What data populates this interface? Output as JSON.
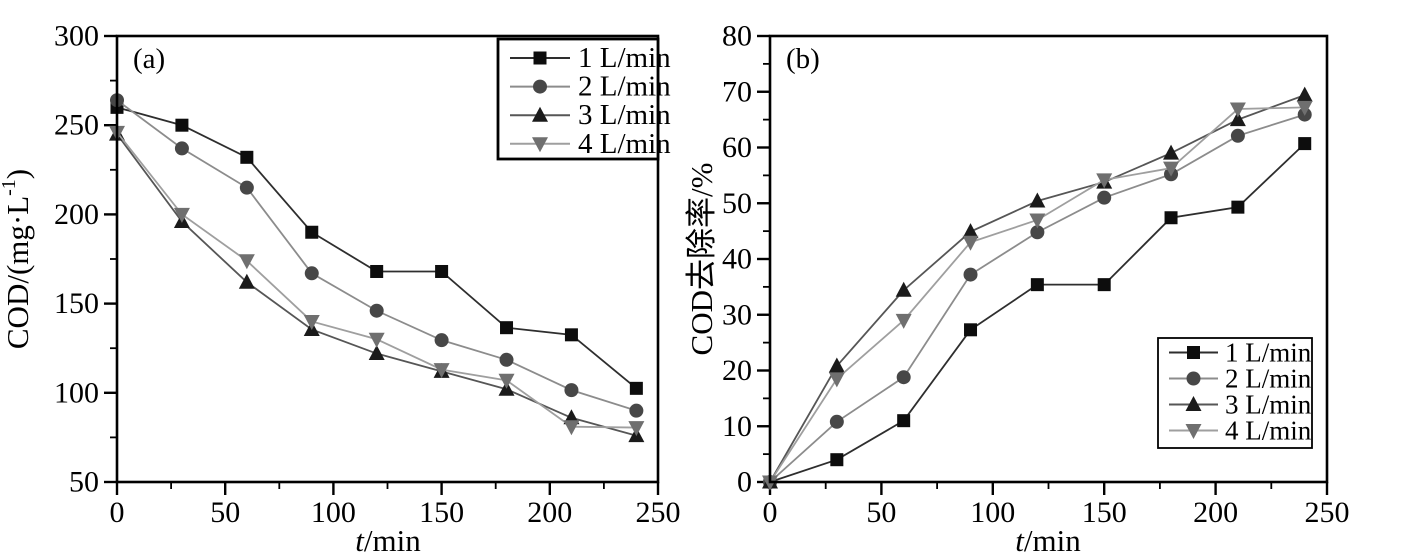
{
  "figure": {
    "background": "#ffffff",
    "axis_color": "#000000",
    "frame_stroke": 2.6
  },
  "chart_data": [
    {
      "type": "line",
      "panel_label": "(a)",
      "title": "",
      "xlabel": "t/min",
      "xlabel_italic_part": "t",
      "xlabel_regular_part": "/min",
      "ylabel": "COD/(mg·L⁻¹)",
      "ylabel_segments": [
        {
          "text": "COD/(mg·L",
          "sup": false
        },
        {
          "text": "-1",
          "sup": true
        },
        {
          "text": ")",
          "sup": false
        }
      ],
      "xlim": [
        0,
        250
      ],
      "ylim": [
        50,
        300
      ],
      "x_major_ticks": [
        0,
        50,
        100,
        150,
        200,
        250
      ],
      "y_major_ticks": [
        50,
        100,
        150,
        200,
        250,
        300
      ],
      "x_minor_step": 25,
      "y_minor_step": 25,
      "grid": false,
      "legend_position": "top-right-inside",
      "x": [
        0,
        30,
        60,
        90,
        120,
        150,
        180,
        210,
        240
      ],
      "series": [
        {
          "name": "1 L/min",
          "marker": "square",
          "marker_color": "#0d0d0d",
          "line_color": "#2e2e2e",
          "values": [
            260,
            250,
            232,
            190,
            168,
            168,
            136.5,
            132.5,
            102.5
          ]
        },
        {
          "name": "2 L/min",
          "marker": "circle",
          "marker_color": "#474747",
          "line_color": "#8c8c8c",
          "values": [
            264,
            237,
            215,
            167,
            146,
            129.5,
            118.5,
            101.5,
            90
          ]
        },
        {
          "name": "3 L/min",
          "marker": "triangle-up",
          "marker_color": "#1b1b1b",
          "line_color": "#565656",
          "values": [
            245,
            196,
            162,
            135.5,
            122,
            112,
            102,
            86,
            76
          ]
        },
        {
          "name": "4 L/min",
          "marker": "triangle-down",
          "marker_color": "#6f6f6f",
          "line_color": "#9f9f9f",
          "values": [
            246,
            200,
            174,
            140,
            130,
            113,
            107,
            81,
            80.5
          ]
        }
      ]
    },
    {
      "type": "line",
      "panel_label": "(b)",
      "title": "",
      "xlabel": "t/min",
      "xlabel_italic_part": "t",
      "xlabel_regular_part": "/min",
      "ylabel": "COD去除率/%",
      "ylabel_segments": [
        {
          "text": "COD去除率/%",
          "sup": false
        }
      ],
      "xlim": [
        0,
        250
      ],
      "ylim": [
        0,
        80
      ],
      "x_major_ticks": [
        0,
        50,
        100,
        150,
        200,
        250
      ],
      "y_major_ticks": [
        0,
        10,
        20,
        30,
        40,
        50,
        60,
        70,
        80
      ],
      "x_minor_step": 25,
      "y_minor_step": 5,
      "grid": false,
      "legend_position": "right-lower-inside",
      "x": [
        0,
        30,
        60,
        90,
        120,
        150,
        180,
        210,
        240
      ],
      "series": [
        {
          "name": "1 L/min",
          "marker": "square",
          "marker_color": "#0d0d0d",
          "line_color": "#2e2e2e",
          "values": [
            0,
            4,
            11,
            27.3,
            35.4,
            35.4,
            47.4,
            49.3,
            60.7
          ]
        },
        {
          "name": "2 L/min",
          "marker": "circle",
          "marker_color": "#474747",
          "line_color": "#8c8c8c",
          "values": [
            0,
            10.8,
            18.8,
            37.2,
            44.8,
            51,
            55.2,
            62.1,
            65.9
          ]
        },
        {
          "name": "3 L/min",
          "marker": "triangle-up",
          "marker_color": "#1b1b1b",
          "line_color": "#565656",
          "values": [
            0,
            20.8,
            34.4,
            44.9,
            50.4,
            53.8,
            59,
            65,
            69.4
          ]
        },
        {
          "name": "4 L/min",
          "marker": "triangle-down",
          "marker_color": "#6f6f6f",
          "line_color": "#9f9f9f",
          "values": [
            0,
            18.5,
            29,
            43,
            47,
            54.2,
            56.3,
            66.9,
            67.2
          ]
        }
      ]
    }
  ]
}
